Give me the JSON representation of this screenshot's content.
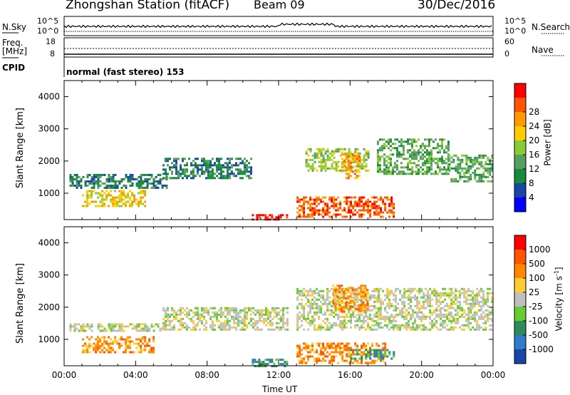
{
  "header": {
    "station": "Zhongshan Station (fitACF)",
    "beam": "Beam 09",
    "date": "30/Dec/2016"
  },
  "top_panels": {
    "nsky_label": "N.Sky",
    "nsearch_label": "N.Search",
    "freq_label_1": "Freq.",
    "freq_label_2": "[MHz]",
    "nave_label": "Nave",
    "cpid_label": "CPID",
    "cpid_value": "normal (fast stereo) 153",
    "noise_ticks_left": [
      "10^5",
      "10^0"
    ],
    "noise_ticks_right": [
      "10^5",
      "10^0"
    ],
    "freq_ticks": [
      "18",
      "8"
    ],
    "nave_ticks": [
      "60",
      "0"
    ]
  },
  "chart_data": [
    {
      "type": "heatmap",
      "title": "",
      "xlabel": "",
      "ylabel": "Slant Range [km]",
      "xlim": [
        0,
        24
      ],
      "ylim": [
        180,
        4500
      ],
      "yticks": [
        "1000",
        "2000",
        "3000",
        "4000"
      ],
      "colorbar_label": "Power [dB]",
      "colorbar_ticks": [
        "4",
        "8",
        "12",
        "16",
        "20",
        "24",
        "28"
      ],
      "colorbar_colors": [
        "#0000ff",
        "#1a45a8",
        "#1a8a3a",
        "#55a060",
        "#88cc33",
        "#ffcc00",
        "#ff9900",
        "#ff5500",
        "#ff0000"
      ],
      "regions": [
        {
          "t0": 0.3,
          "t1": 5.8,
          "r0": 1200,
          "r1": 1600,
          "level": 2
        },
        {
          "t0": 1.0,
          "t1": 4.5,
          "r0": 600,
          "r1": 1100,
          "level": 5
        },
        {
          "t0": 5.5,
          "t1": 10.5,
          "r0": 1450,
          "r1": 2100,
          "level": 2
        },
        {
          "t0": 10.5,
          "t1": 12.5,
          "r0": 200,
          "r1": 350,
          "level": 8
        },
        {
          "t0": 13.0,
          "t1": 18.5,
          "r0": 300,
          "r1": 900,
          "level": 7
        },
        {
          "t0": 13.5,
          "t1": 17.0,
          "r0": 1700,
          "r1": 2400,
          "level": 4
        },
        {
          "t0": 15.5,
          "t1": 16.5,
          "r0": 1500,
          "r1": 2300,
          "level": 6
        },
        {
          "t0": 17.5,
          "t1": 21.5,
          "r0": 1600,
          "r1": 2700,
          "level": 3
        },
        {
          "t0": 21.5,
          "t1": 24.0,
          "r0": 1400,
          "r1": 2200,
          "level": 3
        }
      ]
    },
    {
      "type": "heatmap",
      "title": "",
      "xlabel": "Time UT",
      "ylabel": "Slant Range [km]",
      "xlim": [
        0,
        24
      ],
      "ylim": [
        180,
        4500
      ],
      "xticks": [
        "00:00",
        "04:00",
        "08:00",
        "12:00",
        "16:00",
        "20:00",
        "00:00"
      ],
      "yticks": [
        "1000",
        "2000",
        "3000",
        "4000"
      ],
      "colorbar_label": "Velocity",
      "colorbar_unit": "[m s",
      "colorbar_unit_sup": "-1",
      "colorbar_unit_end": "]",
      "colorbar_ticks": [
        "1000",
        "500",
        "100",
        "25",
        "-25",
        "-100",
        "-500",
        "-1000"
      ],
      "colorbar_colors": [
        "#1a45a8",
        "#2d7dcc",
        "#2e8b57",
        "#66cc33",
        "#bfbfbf",
        "#ffcc33",
        "#ff8800",
        "#ff5500",
        "#ff0000"
      ],
      "regions": [
        {
          "t0": 0.3,
          "t1": 5.5,
          "r0": 1300,
          "r1": 1500,
          "level": 4
        },
        {
          "t0": 1.0,
          "t1": 5.0,
          "r0": 600,
          "r1": 1100,
          "level": 6
        },
        {
          "t0": 5.5,
          "t1": 12.5,
          "r0": 1300,
          "r1": 2000,
          "level": 4
        },
        {
          "t0": 10.5,
          "t1": 12.5,
          "r0": 200,
          "r1": 400,
          "level": 2
        },
        {
          "t0": 13.0,
          "t1": 18.0,
          "r0": 300,
          "r1": 900,
          "level": 6
        },
        {
          "t0": 13.0,
          "t1": 24.0,
          "r0": 1300,
          "r1": 2600,
          "level": 4
        },
        {
          "t0": 15.0,
          "t1": 17.0,
          "r0": 1900,
          "r1": 2700,
          "level": 6
        },
        {
          "t0": 16.0,
          "t1": 18.5,
          "r0": 400,
          "r1": 700,
          "level": 2
        }
      ]
    }
  ]
}
